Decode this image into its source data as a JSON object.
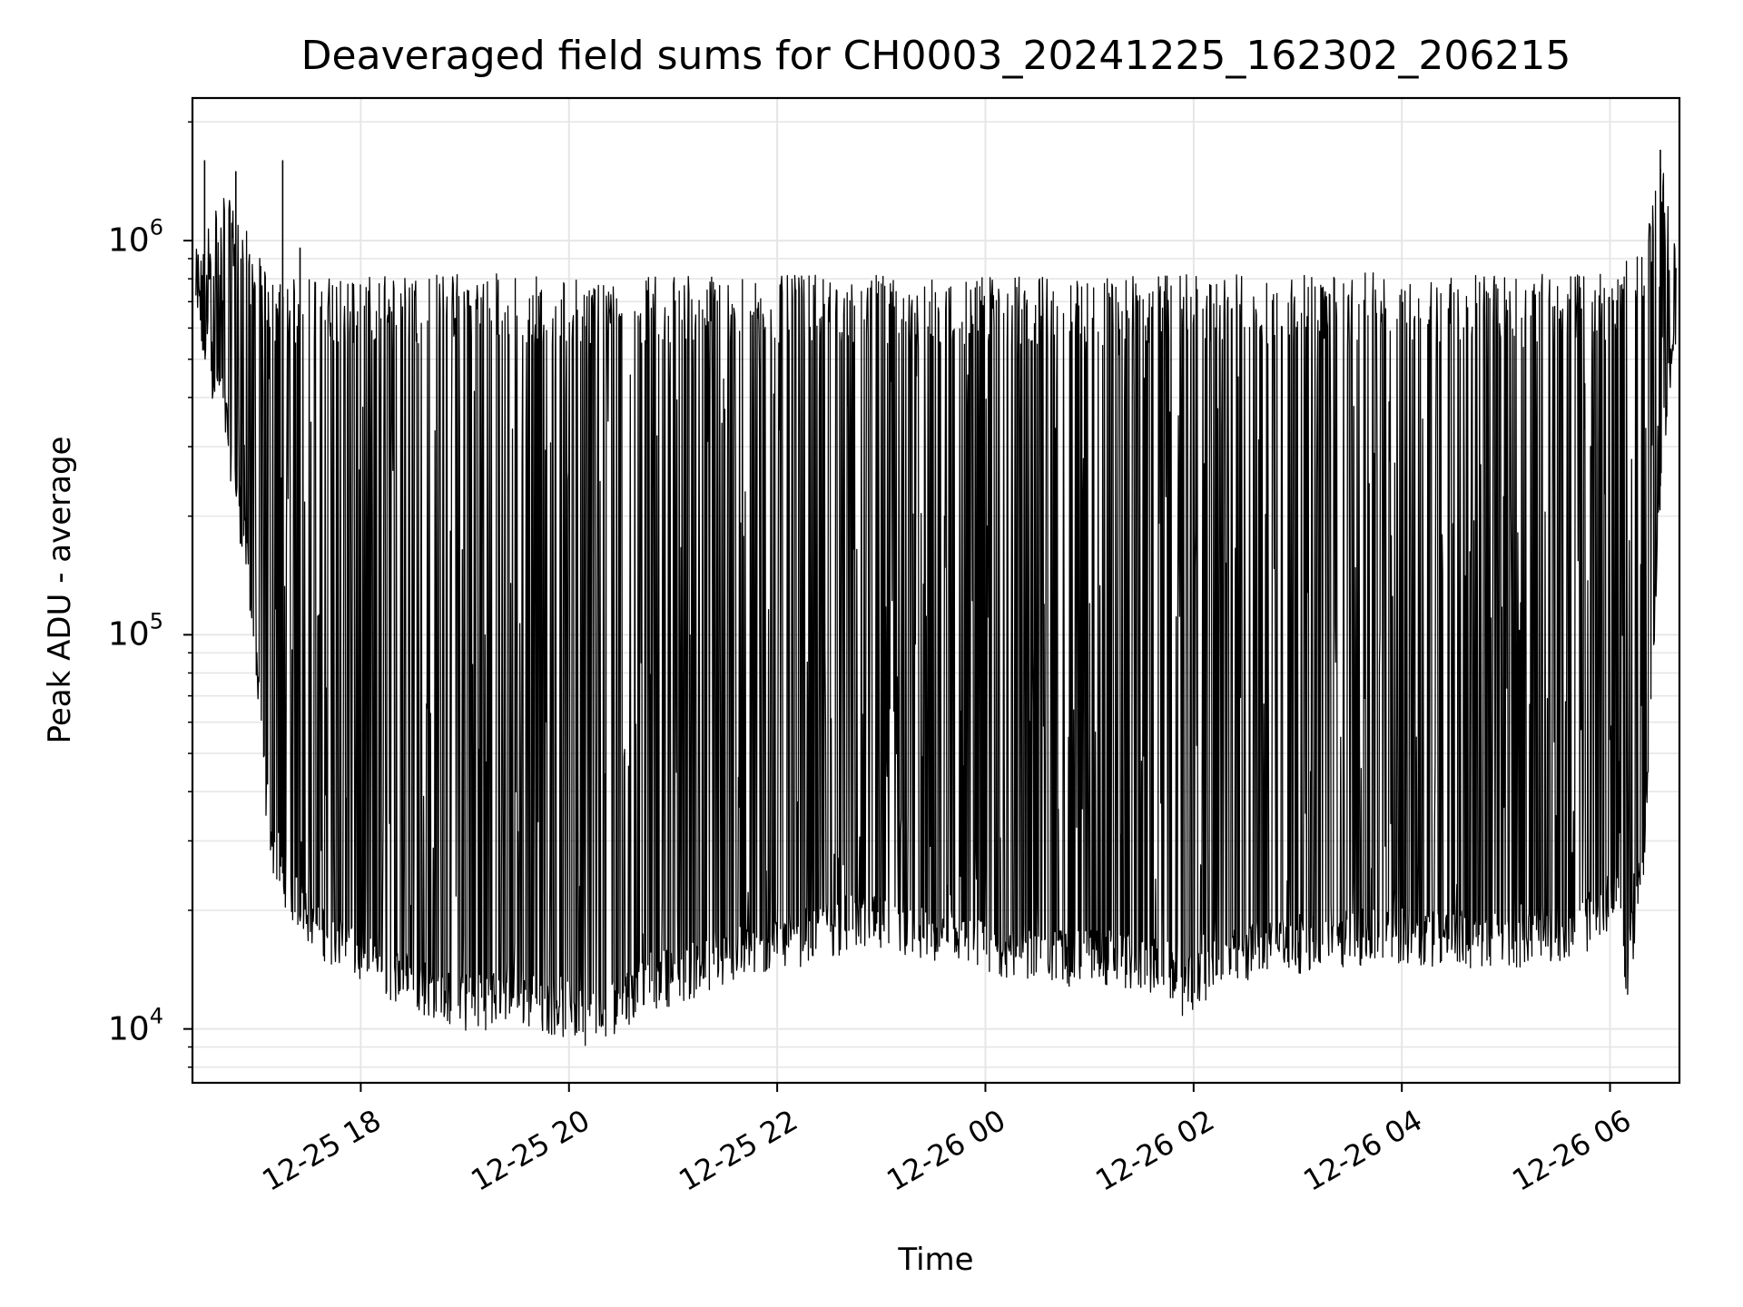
{
  "chart_data": {
    "type": "line",
    "title": "Deaveraged field sums for CH0003_20241225_162302_206215",
    "xlabel": "Time",
    "ylabel": "Peak ADU - average",
    "yscale": "log",
    "ylim": [
      7300,
      2300000
    ],
    "xlim": [
      "2024-12-25 16:23",
      "2024-12-26 06:40"
    ],
    "grid": true,
    "line_color": "#000000",
    "x_ticks": [
      {
        "value": "2024-12-25 18:00",
        "label": "12-25 18"
      },
      {
        "value": "2024-12-25 20:00",
        "label": "12-25 20"
      },
      {
        "value": "2024-12-25 22:00",
        "label": "12-25 22"
      },
      {
        "value": "2024-12-26 00:00",
        "label": "12-26 00"
      },
      {
        "value": "2024-12-26 02:00",
        "label": "12-26 02"
      },
      {
        "value": "2024-12-26 04:00",
        "label": "12-26 04"
      },
      {
        "value": "2024-12-26 06:00",
        "label": "12-26 06"
      }
    ],
    "y_ticks": [
      {
        "value": 10000,
        "base": "10",
        "exp": "4"
      },
      {
        "value": 100000,
        "base": "10",
        "exp": "5"
      },
      {
        "value": 1000000,
        "base": "10",
        "exp": "6"
      }
    ],
    "series": [
      {
        "x": [
          "2024-12-25 16:25",
          "2024-12-25 16:40",
          "2024-12-25 16:55",
          "2024-12-25 17:05",
          "2024-12-25 17:10",
          "2024-12-25 17:20",
          "2024-12-25 17:35",
          "2024-12-25 18:00",
          "2024-12-25 18:30",
          "2024-12-25 19:00",
          "2024-12-25 19:30",
          "2024-12-25 20:00",
          "2024-12-25 20:15",
          "2024-12-25 20:45",
          "2024-12-25 21:15",
          "2024-12-25 21:45",
          "2024-12-25 22:15",
          "2024-12-25 22:45",
          "2024-12-25 23:15",
          "2024-12-25 23:45",
          "2024-12-26 00:15",
          "2024-12-26 00:45",
          "2024-12-26 01:15",
          "2024-12-26 01:45",
          "2024-12-26 01:55",
          "2024-12-26 02:15",
          "2024-12-26 02:45",
          "2024-12-26 03:15",
          "2024-12-26 03:45",
          "2024-12-26 04:15",
          "2024-12-26 04:45",
          "2024-12-26 05:15",
          "2024-12-26 05:45",
          "2024-12-26 06:05",
          "2024-12-26 06:10",
          "2024-12-26 06:20",
          "2024-12-26 06:30",
          "2024-12-26 06:38"
        ],
        "floor": [
          600000,
          400000,
          150000,
          40000,
          28000,
          22000,
          18000,
          15000,
          13000,
          11500,
          12000,
          11000,
          10500,
          13000,
          14000,
          15500,
          17000,
          18500,
          17500,
          16000,
          15500,
          15000,
          15000,
          14000,
          12500,
          14500,
          16000,
          16500,
          17000,
          17000,
          16500,
          17000,
          18000,
          22000,
          13500,
          30000,
          300000,
          600000
        ],
        "peak": [
          900000,
          1300000,
          1000000,
          800000,
          750000,
          760000,
          780000,
          780000,
          780000,
          800000,
          790000,
          760000,
          780000,
          780000,
          790000,
          770000,
          780000,
          770000,
          790000,
          780000,
          770000,
          780000,
          770000,
          780000,
          780000,
          790000,
          780000,
          780000,
          790000,
          780000,
          790000,
          780000,
          790000,
          800000,
          850000,
          1000000,
          1500000,
          900000
        ]
      }
    ],
    "notable_spikes": [
      {
        "x": "2024-12-25 16:30",
        "y": 1600000
      },
      {
        "x": "2024-12-25 16:48",
        "y": 1500000
      },
      {
        "x": "2024-12-25 17:15",
        "y": 1600000
      },
      {
        "x": "2024-12-25 17:25",
        "y": 960000
      },
      {
        "x": "2024-12-26 06:29",
        "y": 1700000
      }
    ]
  }
}
